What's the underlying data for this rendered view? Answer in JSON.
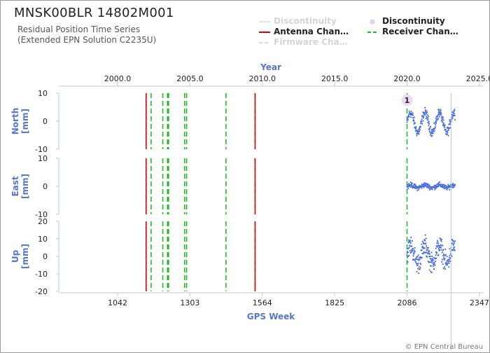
{
  "header": {
    "title": "MNSK00BLR 14802M001",
    "subtitle_line1": "Residual Position Time Series",
    "subtitle_line2": "(Extended EPN Solution C2235U)"
  },
  "legend": [
    {
      "label": "Discontinuity",
      "style": "line-light",
      "color": "#dcdcdc",
      "faded": true
    },
    {
      "label": "Discontinuity",
      "style": "dot",
      "color": "#e6d6f2",
      "faded": false
    },
    {
      "label": "Antenna Chan…",
      "style": "line",
      "color": "#dd0000",
      "faded": false
    },
    {
      "label": "Receiver Chan…",
      "style": "dashed",
      "color": "#22bb22",
      "faded": false
    },
    {
      "label": "Firmware Cha…",
      "style": "dashed-light",
      "color": "#dcdcdc",
      "faded": true
    }
  ],
  "credit": "© EPN Central Bureau",
  "chart_data": {
    "type": "scatter",
    "x_axis_bottom": {
      "label": "GPS Week",
      "ticks": [
        1042,
        1303,
        1564,
        1825,
        2086,
        2347
      ],
      "range": [
        830,
        2360
      ]
    },
    "x_axis_top": {
      "label": "Year",
      "ticks": [
        "2000.0",
        "2005.0",
        "2010.0",
        "2015.0",
        "2020.0",
        "2025.0"
      ]
    },
    "panels": [
      {
        "name": "North",
        "ylabel": "North\n[mm]",
        "ylim": [
          -10,
          10
        ],
        "yticks": [
          -10,
          0,
          10
        ]
      },
      {
        "name": "East",
        "ylabel": "East\n[mm]",
        "ylim": [
          -10,
          10
        ],
        "yticks": [
          -10,
          0,
          10
        ]
      },
      {
        "name": "Up",
        "ylabel": "Up\n[mm]",
        "ylim": [
          -20,
          20
        ],
        "yticks": [
          -20,
          -10,
          0,
          10,
          20
        ]
      }
    ],
    "antenna_changes_week": [
      1145,
      1538
    ],
    "receiver_changes_week": [
      1145,
      1163,
      1205,
      1222,
      1226,
      1284,
      1291,
      1433,
      1538,
      2086
    ],
    "discontinuity": {
      "week": 2086,
      "label": "1"
    },
    "series_summary": {
      "start_week": 2086,
      "end_week": 2259,
      "north": {
        "mean": -0.5,
        "amplitude": 3.5,
        "noise": 1.2
      },
      "east": {
        "mean": 0.0,
        "amplitude": 0.5,
        "noise": 0.6
      },
      "up": {
        "mean": 1.0,
        "amplitude": 5.0,
        "noise": 4.0
      }
    }
  }
}
